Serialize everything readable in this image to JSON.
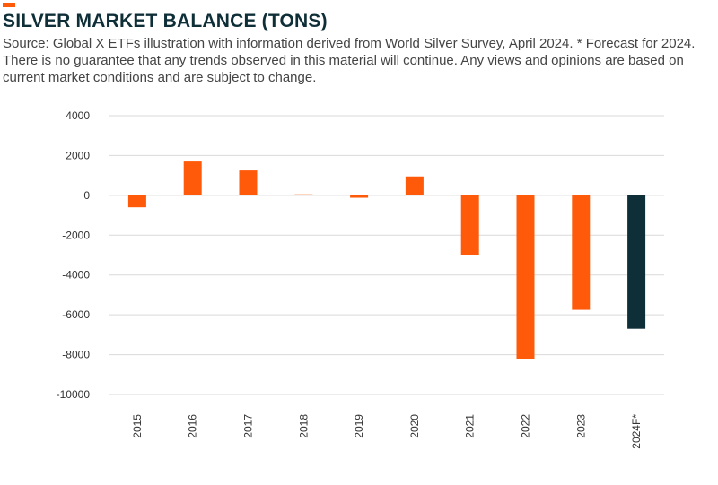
{
  "header": {
    "title": "SILVER MARKET BALANCE (TONS)",
    "subtitle": "Source: Global X ETFs illustration with information derived from World Silver Survey, April 2024. * Forecast for 2024. There is no guarantee that any trends observed in this material will continue. Any views and opinions are based on current market conditions and are subject to change."
  },
  "colors": {
    "accent": "#ff5a0a",
    "title": "#0f2f38",
    "text": "#444444",
    "bar": "#ff5a0a",
    "forecast_bar": "#0f2f38",
    "grid": "#d9d9d9"
  },
  "chart_data": {
    "type": "bar",
    "title": "SILVER MARKET BALANCE (TONS)",
    "xlabel": "",
    "ylabel": "",
    "categories": [
      "2015",
      "2016",
      "2017",
      "2018",
      "2019",
      "2020",
      "2021",
      "2022",
      "2023",
      "2024F*"
    ],
    "values": [
      -600,
      1700,
      1250,
      50,
      -120,
      950,
      -3000,
      -8200,
      -5750,
      -6700
    ],
    "forecast_index": 9,
    "ylim": [
      -10000,
      4000
    ],
    "yticks": [
      4000,
      2000,
      0,
      -2000,
      -4000,
      -6000,
      -8000,
      -10000
    ],
    "ytick_labels": [
      "4000",
      "2000",
      "0",
      "-2000",
      "-4000",
      "-6000",
      "-8000",
      "-10000"
    ],
    "grid": true,
    "legend": "none"
  }
}
